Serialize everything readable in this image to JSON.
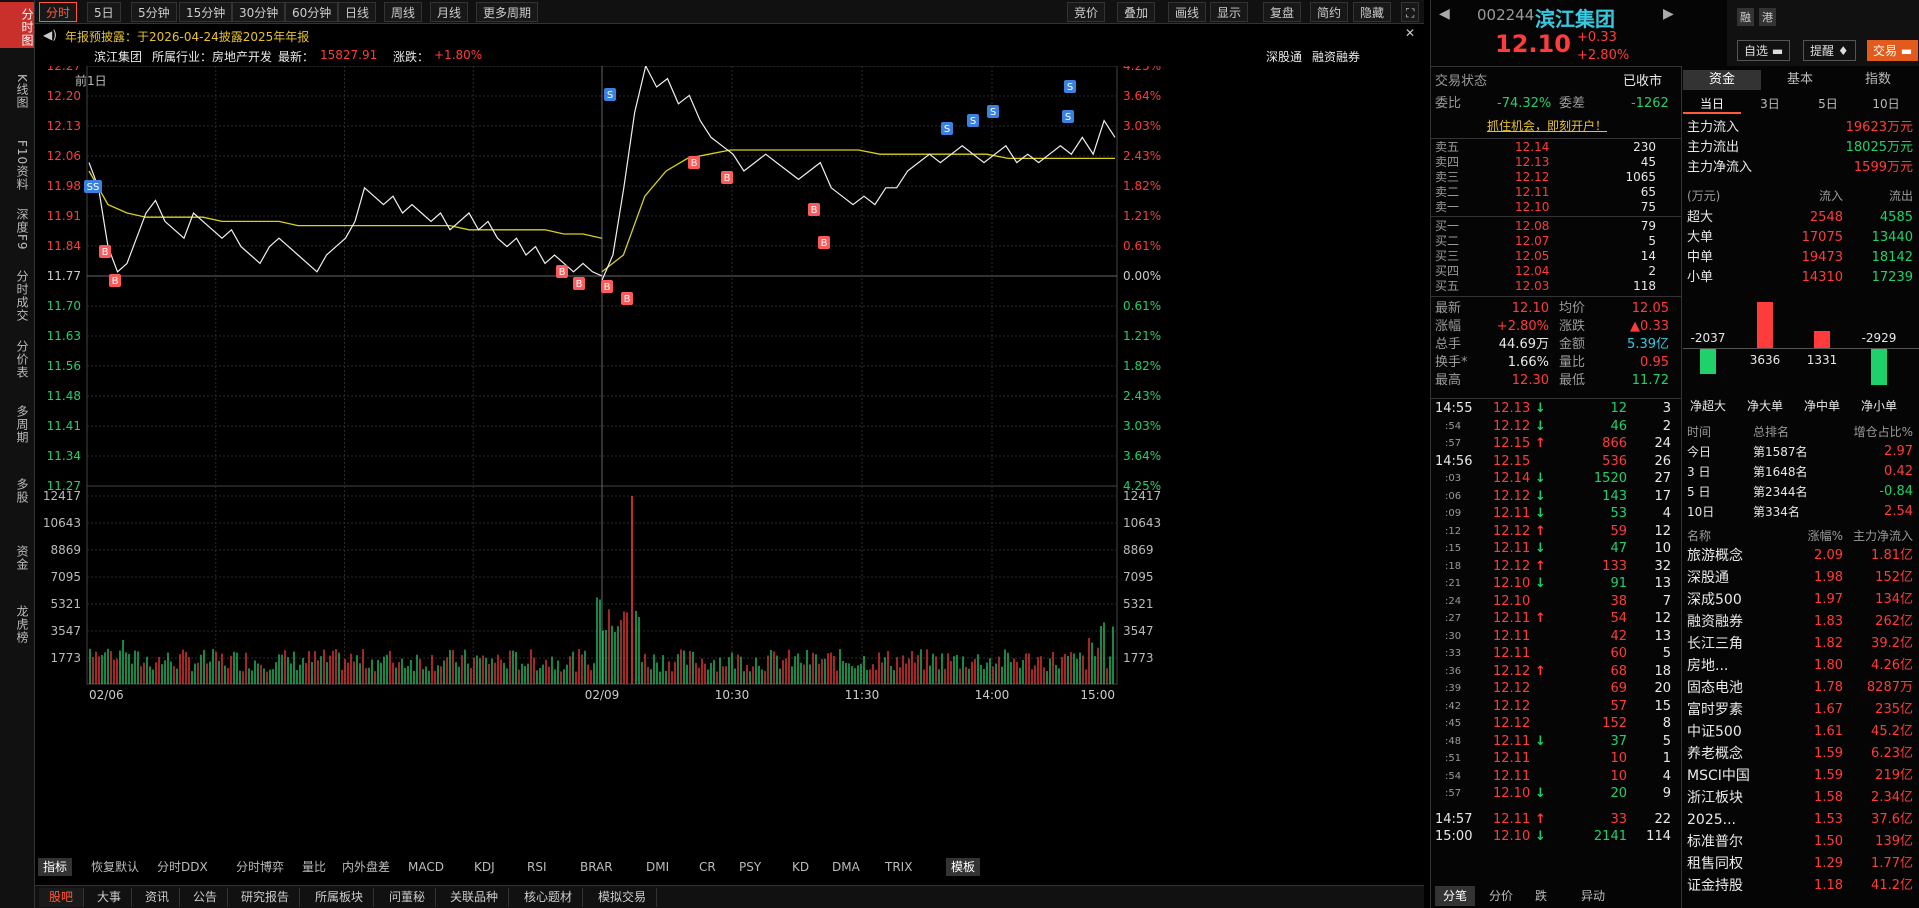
{
  "left_tabs": [
    "分时图",
    "K线图",
    "F10资料",
    "深度F9",
    "分时成交",
    "分价表",
    "多周期",
    "多股",
    "资金",
    "龙虎榜"
  ],
  "top_tabs": [
    "分时",
    "5日",
    "5分钟",
    "15分钟",
    "30分钟",
    "60分钟",
    "日线",
    "周线",
    "月线",
    "更多周期"
  ],
  "top_right": [
    "竞价",
    "叠加",
    "画线",
    "显示",
    "复盘",
    "简约",
    "隐藏"
  ],
  "notice": "年报预披露：于2026-04-24披露2025年年报",
  "info": {
    "name": "滨江集团",
    "industry": "所属行业：房地产开发",
    "latest": "最新：",
    "latest_val": "15827.91",
    "chg": "涨跌：",
    "chg_val": "+1.80%",
    "sgt": "深股通",
    "rz": "融资融券",
    "prev": "前1日"
  },
  "price_ticks": [
    "12.27",
    "12.20",
    "12.13",
    "12.06",
    "11.98",
    "11.91",
    "11.84",
    "11.77",
    "11.70",
    "11.63",
    "11.56",
    "11.48",
    "11.41",
    "11.34",
    "11.27"
  ],
  "pct_ticks": [
    "4.25%",
    "3.64%",
    "3.03%",
    "2.43%",
    "1.82%",
    "1.21%",
    "0.61%",
    "0.00%",
    "0.61%",
    "1.21%",
    "1.82%",
    "2.43%",
    "3.03%",
    "3.64%",
    "4.25%"
  ],
  "vol_ticks": [
    "12417",
    "10643",
    "8869",
    "7095",
    "5321",
    "3547",
    "1773"
  ],
  "time_ticks": [
    "02/06",
    "02/09",
    "10:30",
    "11:30",
    "14:00",
    "15:00"
  ],
  "indicators": [
    "指标",
    "恢复默认",
    "分时DDX",
    "分时博弈",
    "量比",
    "内外盘差",
    "MACD",
    "KDJ",
    "RSI",
    "BRAR",
    "DMI",
    "CR",
    "PSY",
    "KD",
    "DMA",
    "TRIX",
    "模板"
  ],
  "bottom_tabs": [
    "股吧",
    "大事",
    "资讯",
    "公告",
    "研究报告",
    "所属板块",
    "问董秘",
    "关联品种",
    "核心题材",
    "模拟交易"
  ],
  "stock": {
    "code": "002244",
    "name": "滨江集团",
    "price": "12.10",
    "chg": "+0.33",
    "pct": "+2.80%"
  },
  "buttons": {
    "zi": "自选",
    "ti": "提醒",
    "jy": "交易"
  },
  "status": {
    "label": "交易状态",
    "val": "已收市",
    "wb": "委比",
    "wb_val": "-74.32%",
    "wc": "委差",
    "wc_val": "-1262",
    "promo": "抓住机会，即刻开户！"
  },
  "asks": [
    [
      "卖五",
      "12.14",
      "230"
    ],
    [
      "卖四",
      "12.13",
      "45"
    ],
    [
      "卖三",
      "12.12",
      "1065"
    ],
    [
      "卖二",
      "12.11",
      "65"
    ],
    [
      "卖一",
      "12.10",
      "75"
    ]
  ],
  "bids": [
    [
      "买一",
      "12.08",
      "79"
    ],
    [
      "买二",
      "12.07",
      "5"
    ],
    [
      "买三",
      "12.05",
      "14"
    ],
    [
      "买四",
      "12.04",
      "2"
    ],
    [
      "买五",
      "12.03",
      "118"
    ]
  ],
  "stats": [
    [
      "最新",
      "12.10",
      "均价",
      "12.05"
    ],
    [
      "涨幅",
      "+2.80%",
      "涨跌",
      "▲0.33"
    ],
    [
      "总手",
      "44.69万",
      "金额",
      "5.39亿"
    ],
    [
      "换手*",
      "1.66%",
      "量比",
      "0.95"
    ],
    [
      "最高",
      "12.30",
      "最低",
      "11.72"
    ]
  ],
  "ticks": [
    [
      "14:55",
      "12.13",
      "↓",
      "12",
      "3"
    ],
    [
      ":54",
      "12.12",
      "↓",
      "46",
      "2"
    ],
    [
      ":57",
      "12.15",
      "↑",
      "866",
      "24"
    ],
    [
      "14:56",
      "12.15",
      "",
      "536",
      "26"
    ],
    [
      ":03",
      "12.14",
      "↓",
      "1520",
      "27"
    ],
    [
      ":06",
      "12.12",
      "↓",
      "143",
      "17"
    ],
    [
      ":09",
      "12.11",
      "↓",
      "53",
      "4"
    ],
    [
      ":12",
      "12.12",
      "↑",
      "59",
      "12"
    ],
    [
      ":15",
      "12.11",
      "↓",
      "47",
      "10"
    ],
    [
      ":18",
      "12.12",
      "↑",
      "133",
      "32"
    ],
    [
      ":21",
      "12.10",
      "↓",
      "91",
      "13"
    ],
    [
      ":24",
      "12.10",
      "",
      "38",
      "7"
    ],
    [
      ":27",
      "12.11",
      "↑",
      "54",
      "12"
    ],
    [
      ":30",
      "12.11",
      "",
      "42",
      "13"
    ],
    [
      ":33",
      "12.11",
      "",
      "60",
      "5"
    ],
    [
      ":36",
      "12.12",
      "↑",
      "68",
      "18"
    ],
    [
      ":39",
      "12.12",
      "",
      "69",
      "20"
    ],
    [
      ":42",
      "12.12",
      "",
      "57",
      "15"
    ],
    [
      ":45",
      "12.12",
      "",
      "152",
      "8"
    ],
    [
      ":48",
      "12.11",
      "↓",
      "37",
      "5"
    ],
    [
      ":51",
      "12.11",
      "",
      "10",
      "1"
    ],
    [
      ":54",
      "12.11",
      "",
      "10",
      "4"
    ],
    [
      ":57",
      "12.10",
      "↓",
      "20",
      "9"
    ],
    [
      "14:57",
      "12.11",
      "↑",
      "33",
      "22"
    ],
    [
      "15:00",
      "12.10",
      "↓",
      "2141",
      "114"
    ]
  ],
  "tick_tabs": [
    "分笔",
    "分价",
    "跌",
    "异动"
  ],
  "fund_tabs": [
    "资金",
    "基本",
    "指数"
  ],
  "day_tabs": [
    "当日",
    "3日",
    "5日",
    "10日"
  ],
  "flows": [
    [
      "主力流入",
      "19623万元"
    ],
    [
      "主力流出",
      "18025万元"
    ],
    [
      "主力净流入",
      "1599万元"
    ]
  ],
  "flow_table": {
    "hdr": [
      "(万元)",
      "流入",
      "流出"
    ],
    "rows": [
      [
        "超大",
        "2548",
        "4585"
      ],
      [
        "大单",
        "17075",
        "13440"
      ],
      [
        "中单",
        "19473",
        "18142"
      ],
      [
        "小单",
        "14310",
        "17239"
      ]
    ]
  },
  "net_bars": {
    "values": [
      -2037,
      3636,
      1331,
      -2929
    ],
    "labels": [
      "净超大",
      "净大单",
      "净中单",
      "净小单"
    ]
  },
  "rank": {
    "hdr": [
      "时间",
      "总排名",
      "增仓占比%"
    ],
    "rows": [
      [
        "今日",
        "第1587名",
        "2.97"
      ],
      [
        "3 日",
        "第1648名",
        "0.42"
      ],
      [
        "5 日",
        "第2344名",
        "-0.84"
      ],
      [
        "10日",
        "第334名",
        "2.54"
      ]
    ]
  },
  "sector": {
    "hdr": [
      "名称",
      "涨幅%",
      "主力净流入"
    ],
    "rows": [
      [
        "旅游概念",
        "2.09",
        "1.81亿"
      ],
      [
        "深股通",
        "1.98",
        "152亿"
      ],
      [
        "深成500",
        "1.97",
        "134亿"
      ],
      [
        "融资融券",
        "1.83",
        "262亿"
      ],
      [
        "长江三角",
        "1.82",
        "39.2亿"
      ],
      [
        "房地...",
        "1.80",
        "4.26亿"
      ],
      [
        "固态电池",
        "1.78",
        "8287万"
      ],
      [
        "富时罗素",
        "1.67",
        "235亿"
      ],
      [
        "中证500",
        "1.61",
        "45.2亿"
      ],
      [
        "养老概念",
        "1.59",
        "6.23亿"
      ],
      [
        "MSCI中国",
        "1.59",
        "219亿"
      ],
      [
        "浙江板块",
        "1.58",
        "2.34亿"
      ],
      [
        "2025...",
        "1.53",
        "37.6亿"
      ],
      [
        "标准普尔",
        "1.50",
        "139亿"
      ],
      [
        "租售同权",
        "1.29",
        "1.77亿"
      ],
      [
        "证金持股",
        "1.18",
        "41.2亿"
      ]
    ]
  },
  "markers": {
    "b": "B",
    "s": "S",
    "ss": "SS"
  },
  "chart_data": {
    "type": "line",
    "title": "",
    "prev_close": 11.77,
    "ylim": [
      11.27,
      12.27
    ],
    "price_day1": [
      12.04,
      11.98,
      11.84,
      11.78,
      11.8,
      11.86,
      11.92,
      11.95,
      11.9,
      11.88,
      11.86,
      11.92,
      11.9,
      11.88,
      11.86,
      11.88,
      11.84,
      11.82,
      11.8,
      11.84,
      11.86,
      11.84,
      11.82,
      11.8,
      11.78,
      11.82,
      11.84,
      11.86,
      11.9,
      11.98,
      11.96,
      11.94,
      11.96,
      11.92,
      11.94,
      11.92,
      11.9,
      11.92,
      11.88,
      11.9,
      11.92,
      11.88,
      11.9,
      11.86,
      11.84,
      11.86,
      11.82,
      11.84,
      11.8,
      11.82,
      11.8,
      11.78,
      11.8,
      11.78,
      11.77
    ],
    "price_day2": [
      11.76,
      11.82,
      11.98,
      12.16,
      12.27,
      12.22,
      12.24,
      12.18,
      12.2,
      12.14,
      12.1,
      12.08,
      12.06,
      12.02,
      12.04,
      12.06,
      12.04,
      12.02,
      12.0,
      12.02,
      12.04,
      11.98,
      11.96,
      11.94,
      11.96,
      11.94,
      11.98,
      11.98,
      12.02,
      12.04,
      12.06,
      12.04,
      12.06,
      12.08,
      12.06,
      12.04,
      12.06,
      12.08,
      12.04,
      12.06,
      12.04,
      12.06,
      12.08,
      12.06,
      12.1,
      12.06,
      12.14,
      12.1
    ],
    "avg_day1": [
      12.02,
      11.94,
      11.92,
      11.91,
      11.91,
      11.91,
      11.91,
      11.9,
      11.9,
      11.9,
      11.9,
      11.89,
      11.89,
      11.89,
      11.89,
      11.89,
      11.89,
      11.89,
      11.89,
      11.89,
      11.88,
      11.88,
      11.88,
      11.88,
      11.88,
      11.87,
      11.87,
      11.86
    ],
    "avg_day2": [
      11.78,
      11.82,
      11.96,
      12.02,
      12.05,
      12.06,
      12.07,
      12.07,
      12.07,
      12.07,
      12.07,
      12.07,
      12.07,
      12.06,
      12.06,
      12.06,
      12.06,
      12.06,
      12.06,
      12.05,
      12.05,
      12.05,
      12.05,
      12.05,
      12.05
    ],
    "vol_ylim": [
      0,
      12417
    ]
  }
}
